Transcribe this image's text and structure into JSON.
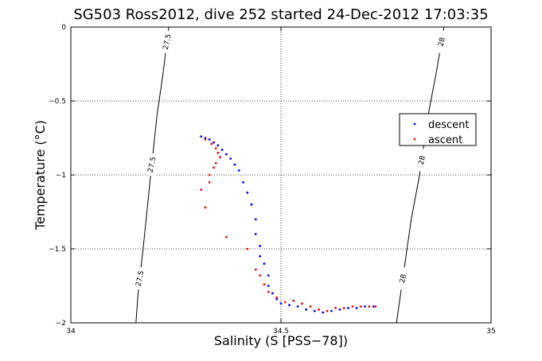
{
  "chart_data": {
    "type": "scatter",
    "title": "SG503 Ross2012, dive 252 started 24-Dec-2012 17:03:35",
    "xlabel": "Salinity (S [PSS−78])",
    "ylabel": "Temperature (°C)",
    "xlim": [
      34,
      35
    ],
    "ylim": [
      -2,
      0
    ],
    "xticks": [
      34,
      34.5,
      35
    ],
    "yticks": [
      0,
      -0.5,
      -1,
      -1.5,
      -2
    ],
    "xtick_labels": [
      "34",
      "34.5",
      "35"
    ],
    "ytick_labels": [
      "0",
      "−0.5",
      "−1",
      "−1.5",
      "−2"
    ],
    "grid": true,
    "legend_position": "right",
    "colors": {
      "descent": "#0000ff",
      "ascent": "#ff0000",
      "axes": "#000000"
    },
    "density_contours": [
      {
        "label": "27.5",
        "points": [
          [
            34.155,
            -2.0
          ],
          [
            34.16,
            -1.8
          ],
          [
            34.172,
            -1.5
          ],
          [
            34.19,
            -1.0
          ],
          [
            34.205,
            -0.6
          ],
          [
            34.22,
            -0.3
          ],
          [
            34.233,
            0.0
          ]
        ],
        "labels_at_y": [
          -1.7,
          -0.93,
          -0.1
        ]
      },
      {
        "label": "28",
        "points": [
          [
            34.775,
            -2.0
          ],
          [
            34.79,
            -1.7
          ],
          [
            34.81,
            -1.3
          ],
          [
            34.83,
            -1.0
          ],
          [
            34.85,
            -0.6
          ],
          [
            34.87,
            -0.3
          ],
          [
            34.888,
            0.0
          ]
        ],
        "labels_at_y": [
          -1.7,
          -0.9,
          -0.1
        ]
      }
    ],
    "series": [
      {
        "name": "descent",
        "points": [
          [
            34.31,
            -0.74
          ],
          [
            34.32,
            -0.75
          ],
          [
            34.33,
            -0.76
          ],
          [
            34.34,
            -0.78
          ],
          [
            34.35,
            -0.8
          ],
          [
            34.36,
            -0.83
          ],
          [
            34.37,
            -0.86
          ],
          [
            34.38,
            -0.89
          ],
          [
            34.39,
            -0.93
          ],
          [
            34.4,
            -0.97
          ],
          [
            34.41,
            -1.05
          ],
          [
            34.42,
            -1.12
          ],
          [
            34.43,
            -1.2
          ],
          [
            34.44,
            -1.3
          ],
          [
            34.44,
            -1.4
          ],
          [
            34.45,
            -1.48
          ],
          [
            34.45,
            -1.55
          ],
          [
            34.46,
            -1.6
          ],
          [
            34.47,
            -1.68
          ],
          [
            34.47,
            -1.75
          ],
          [
            34.48,
            -1.8
          ],
          [
            34.49,
            -1.84
          ],
          [
            34.5,
            -1.87
          ],
          [
            34.52,
            -1.88
          ],
          [
            34.54,
            -1.89
          ],
          [
            34.56,
            -1.91
          ],
          [
            34.58,
            -1.92
          ],
          [
            34.6,
            -1.93
          ],
          [
            34.62,
            -1.92
          ],
          [
            34.64,
            -1.91
          ],
          [
            34.66,
            -1.9
          ],
          [
            34.68,
            -1.9
          ],
          [
            34.7,
            -1.89
          ],
          [
            34.72,
            -1.89
          ]
        ]
      },
      {
        "name": "ascent",
        "points": [
          [
            34.32,
            -0.76
          ],
          [
            34.335,
            -0.79
          ],
          [
            34.345,
            -0.82
          ],
          [
            34.35,
            -0.85
          ],
          [
            34.355,
            -0.88
          ],
          [
            34.34,
            -0.95
          ],
          [
            34.33,
            -1.0
          ],
          [
            34.33,
            -1.05
          ],
          [
            34.345,
            -0.92
          ],
          [
            34.31,
            -1.1
          ],
          [
            34.32,
            -1.22
          ],
          [
            34.37,
            -1.42
          ],
          [
            34.42,
            -1.5
          ],
          [
            34.44,
            -1.64
          ],
          [
            34.45,
            -1.68
          ],
          [
            34.46,
            -1.74
          ],
          [
            34.47,
            -1.79
          ],
          [
            34.49,
            -1.83
          ],
          [
            34.51,
            -1.86
          ],
          [
            34.53,
            -1.85
          ],
          [
            34.55,
            -1.87
          ],
          [
            34.57,
            -1.89
          ],
          [
            34.59,
            -1.91
          ],
          [
            34.61,
            -1.92
          ],
          [
            34.63,
            -1.9
          ],
          [
            34.65,
            -1.9
          ],
          [
            34.67,
            -1.89
          ],
          [
            34.69,
            -1.89
          ],
          [
            34.71,
            -1.89
          ],
          [
            34.725,
            -1.89
          ]
        ]
      }
    ]
  }
}
